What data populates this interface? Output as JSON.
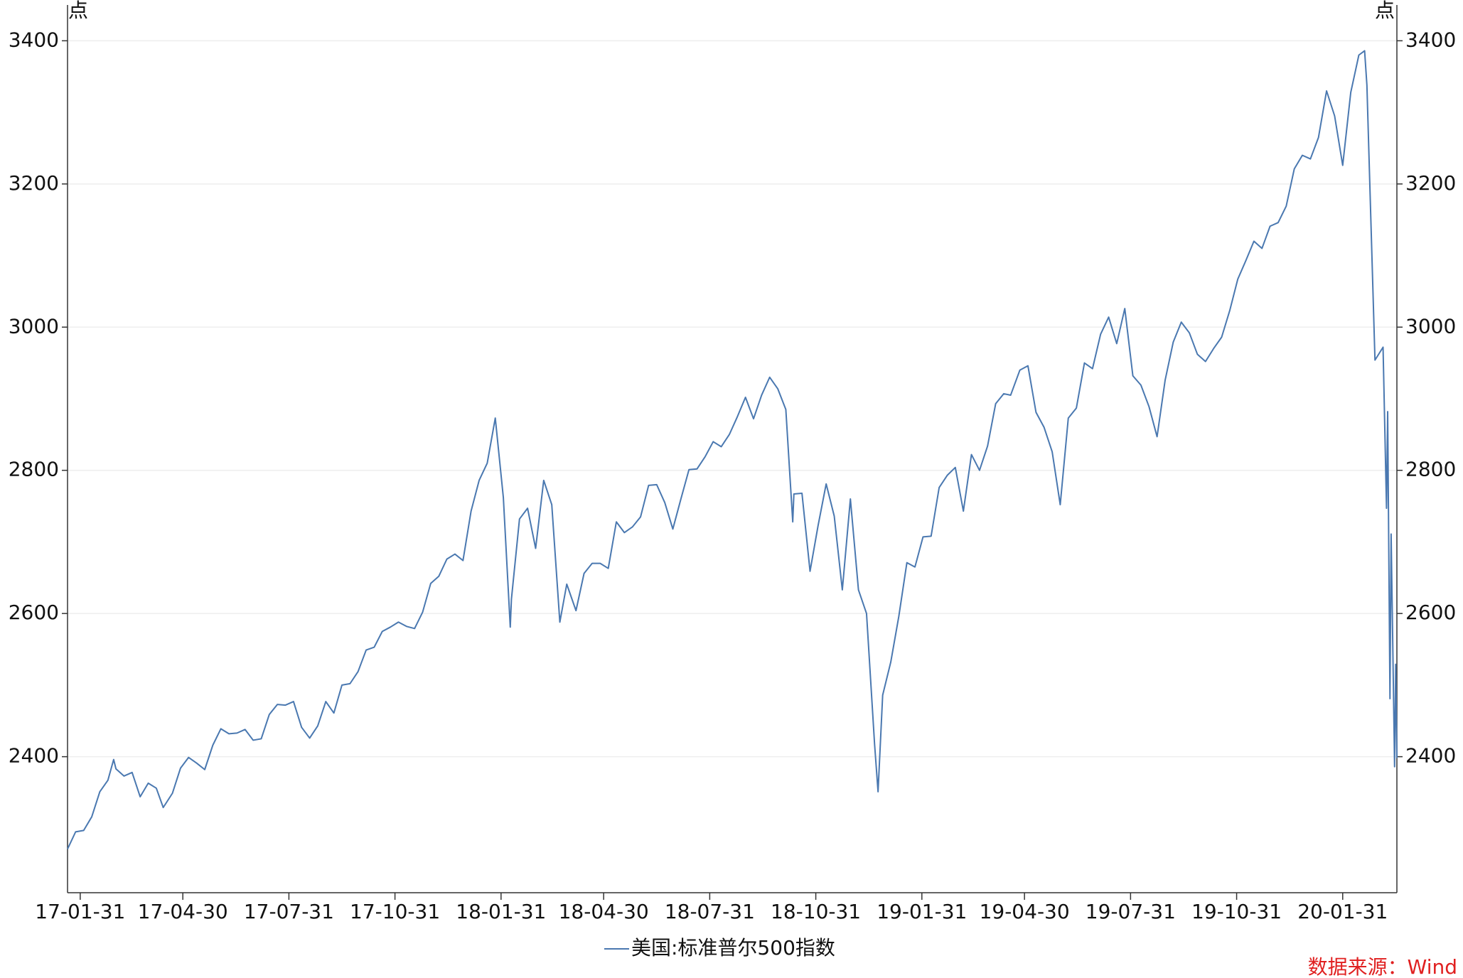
{
  "chart_data": {
    "type": "line",
    "y_label": "点",
    "y2_label": "点",
    "x": [
      "2017-01-20",
      "2017-01-27",
      "2017-02-03",
      "2017-02-10",
      "2017-02-17",
      "2017-02-24",
      "2017-03-01",
      "2017-03-03",
      "2017-03-10",
      "2017-03-17",
      "2017-03-24",
      "2017-03-31",
      "2017-04-07",
      "2017-04-13",
      "2017-04-21",
      "2017-04-28",
      "2017-05-05",
      "2017-05-12",
      "2017-05-19",
      "2017-05-26",
      "2017-06-02",
      "2017-06-09",
      "2017-06-16",
      "2017-06-23",
      "2017-06-30",
      "2017-07-07",
      "2017-07-14",
      "2017-07-21",
      "2017-07-28",
      "2017-08-04",
      "2017-08-11",
      "2017-08-18",
      "2017-08-25",
      "2017-09-01",
      "2017-09-08",
      "2017-09-15",
      "2017-09-22",
      "2017-09-29",
      "2017-10-06",
      "2017-10-13",
      "2017-10-20",
      "2017-10-27",
      "2017-11-03",
      "2017-11-10",
      "2017-11-17",
      "2017-11-24",
      "2017-12-01",
      "2017-12-08",
      "2017-12-15",
      "2017-12-22",
      "2017-12-29",
      "2018-01-05",
      "2018-01-12",
      "2018-01-19",
      "2018-01-26",
      "2018-02-02",
      "2018-02-08",
      "2018-02-09",
      "2018-02-16",
      "2018-02-23",
      "2018-03-02",
      "2018-03-09",
      "2018-03-16",
      "2018-03-23",
      "2018-03-29",
      "2018-04-06",
      "2018-04-13",
      "2018-04-20",
      "2018-04-27",
      "2018-05-04",
      "2018-05-11",
      "2018-05-18",
      "2018-05-25",
      "2018-06-01",
      "2018-06-08",
      "2018-06-15",
      "2018-06-22",
      "2018-06-29",
      "2018-07-06",
      "2018-07-13",
      "2018-07-20",
      "2018-07-27",
      "2018-08-03",
      "2018-08-10",
      "2018-08-17",
      "2018-08-24",
      "2018-08-31",
      "2018-09-07",
      "2018-09-14",
      "2018-09-21",
      "2018-09-28",
      "2018-10-05",
      "2018-10-11",
      "2018-10-12",
      "2018-10-19",
      "2018-10-26",
      "2018-11-02",
      "2018-11-09",
      "2018-11-16",
      "2018-11-23",
      "2018-11-30",
      "2018-12-07",
      "2018-12-14",
      "2018-12-21",
      "2018-12-24",
      "2018-12-28",
      "2019-01-04",
      "2019-01-11",
      "2019-01-18",
      "2019-01-25",
      "2019-02-01",
      "2019-02-08",
      "2019-02-15",
      "2019-02-22",
      "2019-03-01",
      "2019-03-08",
      "2019-03-15",
      "2019-03-22",
      "2019-03-29",
      "2019-04-05",
      "2019-04-12",
      "2019-04-18",
      "2019-04-26",
      "2019-05-03",
      "2019-05-10",
      "2019-05-17",
      "2019-05-24",
      "2019-05-31",
      "2019-06-07",
      "2019-06-14",
      "2019-06-21",
      "2019-06-28",
      "2019-07-05",
      "2019-07-12",
      "2019-07-19",
      "2019-07-26",
      "2019-08-02",
      "2019-08-09",
      "2019-08-16",
      "2019-08-23",
      "2019-08-30",
      "2019-09-06",
      "2019-09-13",
      "2019-09-20",
      "2019-09-27",
      "2019-10-04",
      "2019-10-11",
      "2019-10-18",
      "2019-10-25",
      "2019-11-01",
      "2019-11-08",
      "2019-11-15",
      "2019-11-22",
      "2019-11-29",
      "2019-12-06",
      "2019-12-13",
      "2019-12-20",
      "2019-12-27",
      "2020-01-03",
      "2020-01-10",
      "2020-01-17",
      "2020-01-24",
      "2020-01-31",
      "2020-02-07",
      "2020-02-14",
      "2020-02-19",
      "2020-02-21",
      "2020-02-28",
      "2020-03-06",
      "2020-03-09",
      "2020-03-10",
      "2020-03-12",
      "2020-03-13",
      "2020-03-16",
      "2020-03-17",
      "2020-03-18"
    ],
    "series": [
      {
        "name": "美国:标准普尔500指数",
        "color": "#4a78b0",
        "values": [
          2271,
          2295,
          2297,
          2316,
          2351,
          2367,
          2396,
          2383,
          2373,
          2378,
          2344,
          2363,
          2356,
          2329,
          2349,
          2384,
          2399,
          2391,
          2382,
          2416,
          2439,
          2432,
          2433,
          2438,
          2423,
          2425,
          2459,
          2473,
          2472,
          2477,
          2441,
          2426,
          2443,
          2477,
          2461,
          2500,
          2502,
          2519,
          2549,
          2553,
          2575,
          2581,
          2588,
          2582,
          2579,
          2602,
          2642,
          2652,
          2676,
          2683,
          2674,
          2743,
          2786,
          2810,
          2873,
          2762,
          2581,
          2620,
          2732,
          2747,
          2691,
          2786,
          2752,
          2588,
          2641,
          2604,
          2656,
          2670,
          2670,
          2663,
          2728,
          2713,
          2721,
          2735,
          2779,
          2780,
          2755,
          2718,
          2760,
          2801,
          2802,
          2819,
          2840,
          2833,
          2850,
          2875,
          2902,
          2872,
          2905,
          2930,
          2914,
          2885,
          2728,
          2767,
          2768,
          2659,
          2723,
          2781,
          2736,
          2633,
          2760,
          2633,
          2600,
          2417,
          2351,
          2486,
          2532,
          2596,
          2671,
          2665,
          2707,
          2708,
          2776,
          2793,
          2804,
          2743,
          2822,
          2800,
          2834,
          2893,
          2907,
          2905,
          2940,
          2946,
          2881,
          2860,
          2826,
          2752,
          2873,
          2887,
          2950,
          2942,
          2990,
          3014,
          2977,
          3026,
          2932,
          2919,
          2889,
          2847,
          2926,
          2979,
          3007,
          2992,
          2962,
          2952,
          2970,
          2986,
          3023,
          3067,
          3093,
          3120,
          3110,
          3141,
          3146,
          3169,
          3221,
          3240,
          3235,
          3265,
          3330,
          3295,
          3226,
          3328,
          3380,
          3386,
          3338,
          2954,
          2972,
          2747,
          2882,
          2481,
          2711,
          2386,
          2529,
          2398
        ]
      }
    ],
    "xlim": [
      "2017-01-20",
      "2020-03-18"
    ],
    "xticks": [
      {
        "value": "2017-01-31",
        "label": "17-01-31"
      },
      {
        "value": "2017-04-30",
        "label": "17-04-30"
      },
      {
        "value": "2017-07-31",
        "label": "17-07-31"
      },
      {
        "value": "2017-10-31",
        "label": "17-10-31"
      },
      {
        "value": "2018-01-31",
        "label": "18-01-31"
      },
      {
        "value": "2018-04-30",
        "label": "18-04-30"
      },
      {
        "value": "2018-07-31",
        "label": "18-07-31"
      },
      {
        "value": "2018-10-31",
        "label": "18-10-31"
      },
      {
        "value": "2019-01-31",
        "label": "19-01-31"
      },
      {
        "value": "2019-04-30",
        "label": "19-04-30"
      },
      {
        "value": "2019-07-31",
        "label": "19-07-31"
      },
      {
        "value": "2019-10-31",
        "label": "19-10-31"
      },
      {
        "value": "2020-01-31",
        "label": "20-01-31"
      }
    ],
    "ylim": [
      2210,
      3450
    ],
    "yticks": [
      2400,
      2600,
      2800,
      3000,
      3200,
      3400
    ],
    "y2lim": [
      2210,
      3450
    ],
    "y2ticks": [
      2400,
      2600,
      2800,
      3000,
      3200,
      3400
    ],
    "grid": true,
    "source": "数据来源：Wind"
  }
}
